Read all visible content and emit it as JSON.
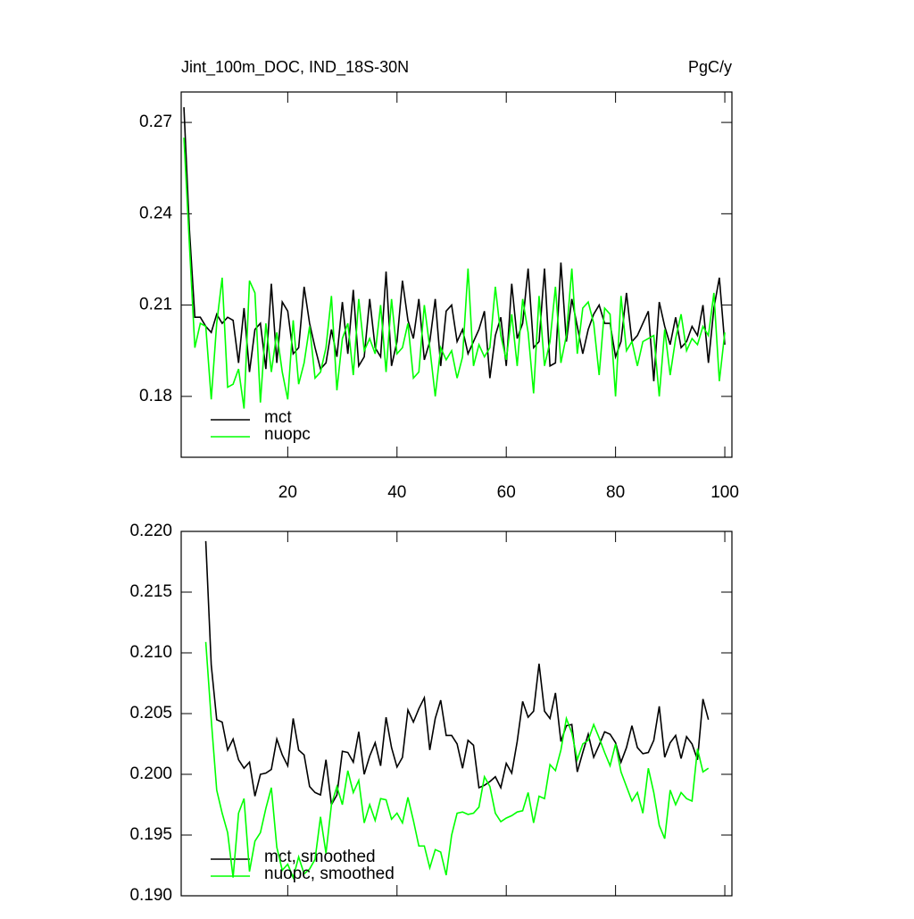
{
  "chart_data": [
    {
      "type": "line",
      "title": "Jint_100m_DOC, IND_18S-30N",
      "units": "PgC/y",
      "x": [
        1,
        2,
        3,
        4,
        5,
        6,
        7,
        8,
        9,
        10,
        11,
        12,
        13,
        14,
        15,
        16,
        17,
        18,
        19,
        20,
        21,
        22,
        23,
        24,
        25,
        26,
        27,
        28,
        29,
        30,
        31,
        32,
        33,
        34,
        35,
        36,
        37,
        38,
        39,
        40,
        41,
        42,
        43,
        44,
        45,
        46,
        47,
        48,
        49,
        50,
        51,
        52,
        53,
        54,
        55,
        56,
        57,
        58,
        59,
        60,
        61,
        62,
        63,
        64,
        65,
        66,
        67,
        68,
        69,
        70,
        71,
        72,
        73,
        74,
        75,
        76,
        77,
        78,
        79,
        80,
        81,
        82,
        83,
        84,
        85,
        86,
        87,
        88,
        89,
        90,
        91,
        92,
        93,
        94,
        95,
        96,
        97,
        98,
        99,
        100
      ],
      "series": [
        {
          "name": "mct",
          "color": "#000000",
          "values": [
            0.275,
            0.235,
            0.206,
            0.206,
            0.203,
            0.201,
            0.207,
            0.204,
            0.206,
            0.205,
            0.191,
            0.209,
            0.188,
            0.202,
            0.204,
            0.189,
            0.217,
            0.191,
            0.211,
            0.208,
            0.194,
            0.196,
            0.216,
            0.204,
            0.196,
            0.189,
            0.191,
            0.202,
            0.193,
            0.211,
            0.194,
            0.215,
            0.19,
            0.193,
            0.212,
            0.196,
            0.193,
            0.221,
            0.19,
            0.198,
            0.218,
            0.205,
            0.199,
            0.212,
            0.192,
            0.198,
            0.212,
            0.19,
            0.208,
            0.21,
            0.198,
            0.202,
            0.194,
            0.198,
            0.202,
            0.208,
            0.186,
            0.2,
            0.206,
            0.19,
            0.217,
            0.199,
            0.204,
            0.222,
            0.196,
            0.198,
            0.222,
            0.19,
            0.191,
            0.224,
            0.198,
            0.212,
            0.203,
            0.194,
            0.202,
            0.207,
            0.21,
            0.204,
            0.204,
            0.193,
            0.198,
            0.214,
            0.198,
            0.2,
            0.204,
            0.208,
            0.185,
            0.211,
            0.203,
            0.197,
            0.206,
            0.196,
            0.198,
            0.203,
            0.2,
            0.21,
            0.191,
            0.209,
            0.219,
            0.197
          ]
        },
        {
          "name": "nuopc",
          "color": "#00ff00",
          "values": [
            0.265,
            0.23,
            0.196,
            0.204,
            0.203,
            0.179,
            0.204,
            0.219,
            0.183,
            0.184,
            0.189,
            0.176,
            0.218,
            0.214,
            0.178,
            0.204,
            0.188,
            0.201,
            0.188,
            0.179,
            0.205,
            0.184,
            0.191,
            0.203,
            0.186,
            0.188,
            0.196,
            0.213,
            0.182,
            0.199,
            0.204,
            0.187,
            0.212,
            0.195,
            0.199,
            0.194,
            0.21,
            0.188,
            0.212,
            0.194,
            0.196,
            0.204,
            0.186,
            0.188,
            0.21,
            0.196,
            0.18,
            0.196,
            0.192,
            0.195,
            0.186,
            0.193,
            0.222,
            0.19,
            0.197,
            0.193,
            0.196,
            0.216,
            0.2,
            0.192,
            0.207,
            0.19,
            0.212,
            0.201,
            0.181,
            0.213,
            0.19,
            0.198,
            0.216,
            0.191,
            0.2,
            0.222,
            0.194,
            0.209,
            0.211,
            0.204,
            0.187,
            0.209,
            0.207,
            0.18,
            0.213,
            0.195,
            0.198,
            0.19,
            0.198,
            0.199,
            0.2,
            0.18,
            0.202,
            0.187,
            0.199,
            0.207,
            0.195,
            0.199,
            0.197,
            0.203,
            0.2,
            0.214,
            0.185,
            0.201
          ]
        }
      ],
      "xlim": [
        0.5,
        101.3
      ],
      "xticks": [
        20,
        40,
        60,
        80,
        100
      ],
      "ylim": [
        0.16,
        0.28
      ],
      "yticks": [
        0.18,
        0.21,
        0.24,
        0.27
      ]
    },
    {
      "type": "line",
      "x": [
        5,
        6,
        7,
        8,
        9,
        10,
        11,
        12,
        13,
        14,
        15,
        16,
        17,
        18,
        19,
        20,
        21,
        22,
        23,
        24,
        25,
        26,
        27,
        28,
        29,
        30,
        31,
        32,
        33,
        34,
        35,
        36,
        37,
        38,
        39,
        40,
        41,
        42,
        43,
        44,
        45,
        46,
        47,
        48,
        49,
        50,
        51,
        52,
        53,
        54,
        55,
        56,
        57,
        58,
        59,
        60,
        61,
        62,
        63,
        64,
        65,
        66,
        67,
        68,
        69,
        70,
        71,
        72,
        73,
        74,
        75,
        76,
        77,
        78,
        79,
        80,
        81,
        82,
        83,
        84,
        85,
        86,
        87,
        88,
        89,
        90,
        91,
        92,
        93,
        94,
        95,
        96,
        97
      ],
      "series": [
        {
          "name": "mct, smoothed",
          "color": "#000000",
          "values": [
            0.2192,
            0.209,
            0.2045,
            0.2043,
            0.202,
            0.2029,
            0.2012,
            0.2005,
            0.201,
            0.1982,
            0.2,
            0.2001,
            0.2004,
            0.2029,
            0.2016,
            0.2007,
            0.2046,
            0.202,
            0.2016,
            0.199,
            0.1985,
            0.1983,
            0.2012,
            0.1975,
            0.1983,
            0.2019,
            0.2018,
            0.201,
            0.2035,
            0.2,
            0.2015,
            0.2026,
            0.2007,
            0.2047,
            0.2022,
            0.2006,
            0.2014,
            0.2053,
            0.2043,
            0.2054,
            0.2063,
            0.202,
            0.2046,
            0.2061,
            0.2032,
            0.2032,
            0.2025,
            0.2005,
            0.2028,
            0.2024,
            0.1989,
            0.1991,
            0.1994,
            0.1998,
            0.1989,
            0.2009,
            0.2001,
            0.2027,
            0.206,
            0.2047,
            0.2052,
            0.2091,
            0.2052,
            0.2046,
            0.2067,
            0.2027,
            0.204,
            0.2041,
            0.2002,
            0.2018,
            0.2033,
            0.2014,
            0.2024,
            0.2035,
            0.2033,
            0.2026,
            0.201,
            0.2022,
            0.204,
            0.2022,
            0.2017,
            0.2018,
            0.2028,
            0.2056,
            0.2014,
            0.2026,
            0.2032,
            0.2013,
            0.2031,
            0.2025,
            0.2012,
            0.2062,
            0.2045
          ]
        },
        {
          "name": "nuopc, smoothed",
          "color": "#00ff00",
          "values": [
            0.2109,
            0.2045,
            0.1987,
            0.1968,
            0.1952,
            0.1915,
            0.1968,
            0.198,
            0.192,
            0.1945,
            0.1952,
            0.1972,
            0.1989,
            0.194,
            0.1921,
            0.1926,
            0.1915,
            0.1932,
            0.1918,
            0.1922,
            0.193,
            0.1965,
            0.1935,
            0.1975,
            0.199,
            0.1975,
            0.2003,
            0.1985,
            0.1995,
            0.196,
            0.1975,
            0.1962,
            0.198,
            0.1979,
            0.1963,
            0.1968,
            0.196,
            0.1981,
            0.1962,
            0.1941,
            0.1941,
            0.1923,
            0.1938,
            0.1936,
            0.1917,
            0.195,
            0.1968,
            0.1969,
            0.1967,
            0.1968,
            0.1973,
            0.1998,
            0.199,
            0.1968,
            0.1961,
            0.1964,
            0.1966,
            0.1969,
            0.197,
            0.1985,
            0.196,
            0.1982,
            0.198,
            0.2008,
            0.2003,
            0.202,
            0.2046,
            0.2034,
            0.2012,
            0.2025,
            0.2028,
            0.2041,
            0.203,
            0.2018,
            0.2007,
            0.2025,
            0.2002,
            0.199,
            0.1978,
            0.1985,
            0.1968,
            0.2005,
            0.1985,
            0.1958,
            0.1947,
            0.1987,
            0.1975,
            0.1985,
            0.198,
            0.1978,
            0.2021,
            0.2002,
            0.2005
          ]
        }
      ],
      "xlim": [
        0.5,
        101.3
      ],
      "ylim": [
        0.19,
        0.22
      ],
      "yticks": [
        {
          "value": 0.19,
          "label": "0.190"
        },
        {
          "value": 0.195,
          "label": "0.195"
        },
        {
          "value": 0.2,
          "label": "0.200"
        },
        {
          "value": 0.205,
          "label": "0.205"
        },
        {
          "value": 0.21,
          "label": "0.210"
        },
        {
          "value": 0.215,
          "label": "0.215"
        },
        {
          "value": 0.22,
          "label": "0.220"
        }
      ]
    }
  ]
}
